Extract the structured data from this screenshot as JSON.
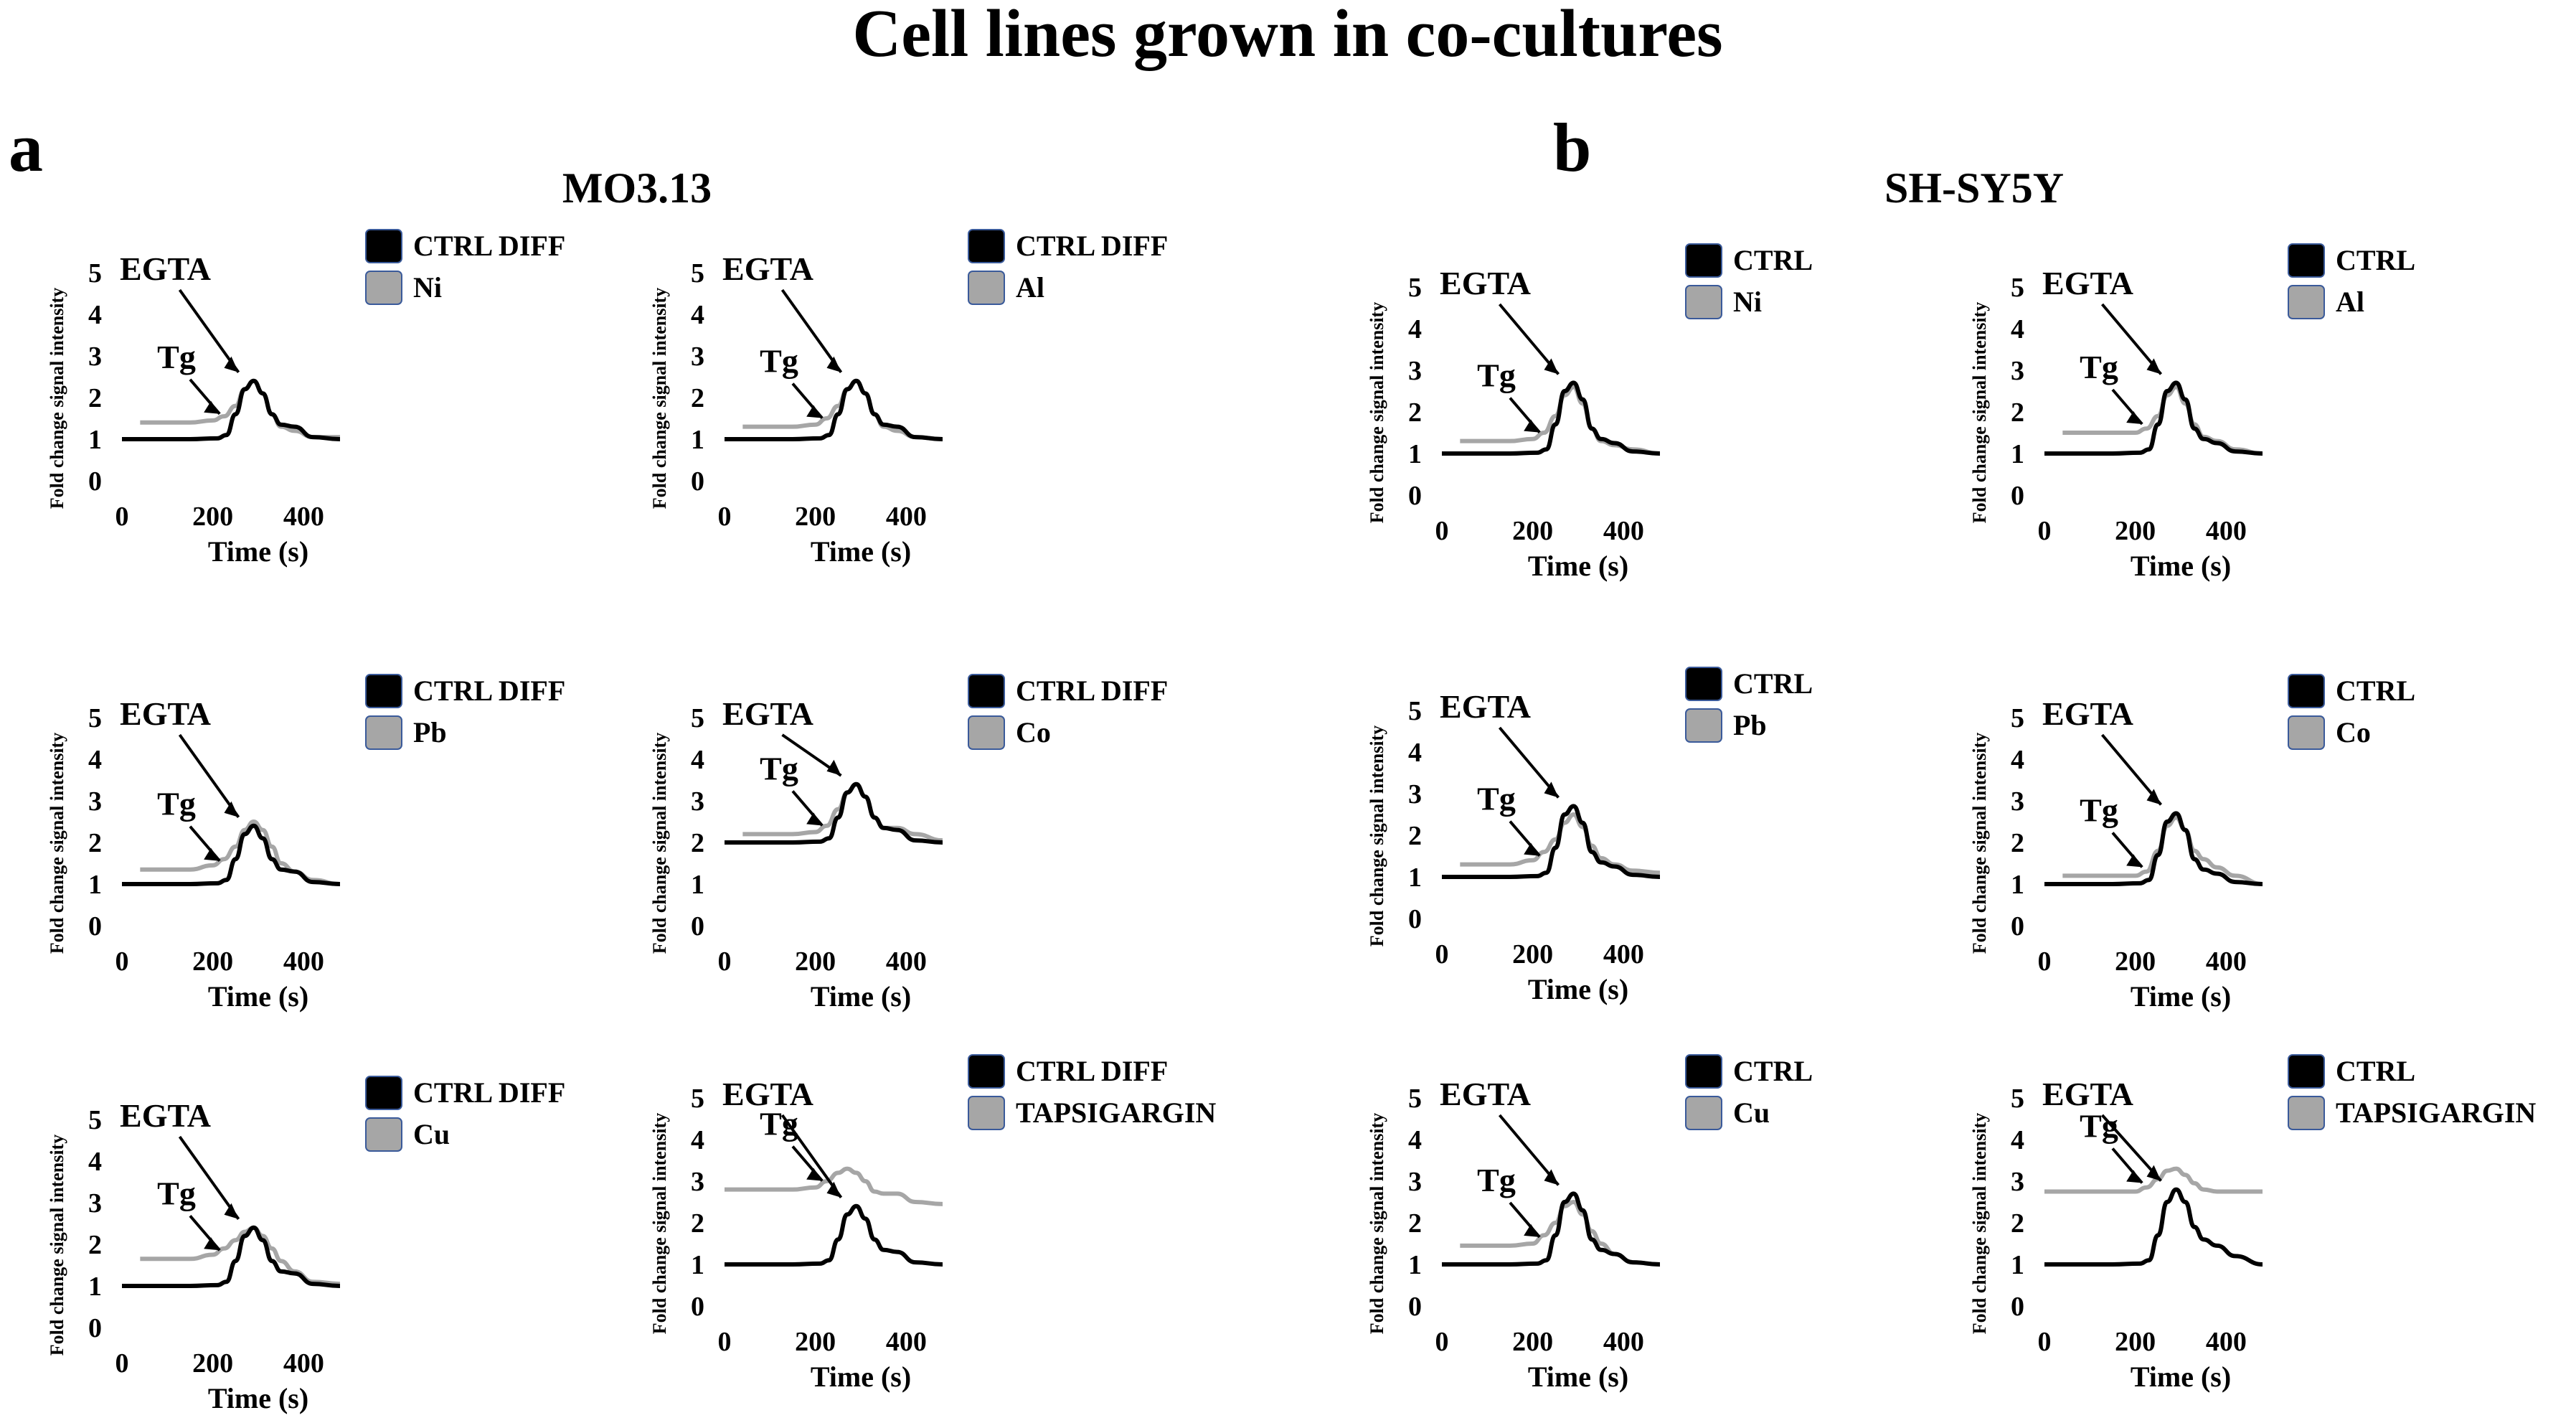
{
  "figure": {
    "title": "Cell lines grown in co-cultures",
    "panel_a": {
      "letter": "a",
      "label": "MO3.13"
    },
    "panel_b": {
      "letter": "b",
      "label": "SH-SY5Y"
    }
  },
  "colors": {
    "control": "#000000",
    "treatment": "#a6a6a6",
    "legend_border": "#3a5a9a"
  },
  "chart_data": [
    {
      "type": "line",
      "id": "a1",
      "ylabel": "Fold change signal intensity",
      "xlabel": "Time (s)",
      "yticks": [
        "0",
        "1",
        "2",
        "3",
        "4",
        "5"
      ],
      "xticks": [
        "0",
        "200",
        "400"
      ],
      "ylim": [
        0,
        5
      ],
      "xlim": [
        0,
        600
      ],
      "annotations": [
        "EGTA",
        "Tg"
      ],
      "series": [
        {
          "name": "CTRL DIFF",
          "x": [
            0,
            150,
            210,
            230,
            250,
            270,
            290,
            310,
            330,
            350,
            380,
            420,
            480
          ],
          "y": [
            1,
            1,
            1.02,
            1.1,
            1.6,
            2.2,
            2.4,
            2.1,
            1.6,
            1.35,
            1.3,
            1.05,
            1
          ]
        },
        {
          "name": "Ni",
          "x": [
            40,
            150,
            200,
            225,
            250,
            270,
            290,
            310,
            330,
            350,
            380,
            420,
            480
          ],
          "y": [
            1.4,
            1.4,
            1.45,
            1.55,
            1.8,
            2.2,
            2.4,
            2.1,
            1.6,
            1.3,
            1.2,
            1.05,
            1.05
          ]
        }
      ]
    },
    {
      "type": "line",
      "id": "a2",
      "ylabel": "Fold change signal intensity",
      "xlabel": "Time (s)",
      "yticks": [
        "0",
        "1",
        "2",
        "3",
        "4",
        "5"
      ],
      "xticks": [
        "0",
        "200",
        "400"
      ],
      "ylim": [
        0,
        5
      ],
      "xlim": [
        0,
        600
      ],
      "annotations": [
        "EGTA",
        "Tg"
      ],
      "series": [
        {
          "name": "CTRL DIFF",
          "x": [
            0,
            150,
            210,
            230,
            250,
            270,
            290,
            310,
            330,
            350,
            380,
            420,
            480
          ],
          "y": [
            1,
            1,
            1.02,
            1.1,
            1.6,
            2.2,
            2.4,
            2.1,
            1.6,
            1.35,
            1.3,
            1.05,
            1
          ]
        },
        {
          "name": "Al",
          "x": [
            40,
            150,
            200,
            225,
            250,
            270,
            290,
            310,
            330,
            350,
            380,
            420,
            480
          ],
          "y": [
            1.3,
            1.3,
            1.35,
            1.5,
            1.8,
            2.2,
            2.4,
            2.1,
            1.6,
            1.3,
            1.2,
            1.05,
            1.0
          ]
        }
      ]
    },
    {
      "type": "line",
      "id": "a3",
      "ylabel": "Fold change signal intensity",
      "xlabel": "Time (s)",
      "yticks": [
        "0",
        "1",
        "2",
        "3",
        "4",
        "5"
      ],
      "xticks": [
        "0",
        "200",
        "400"
      ],
      "ylim": [
        0,
        5
      ],
      "xlim": [
        0,
        600
      ],
      "annotations": [
        "EGTA",
        "Tg"
      ],
      "series": [
        {
          "name": "CTRL DIFF",
          "x": [
            0,
            150,
            210,
            230,
            250,
            270,
            290,
            310,
            330,
            350,
            380,
            420,
            480
          ],
          "y": [
            1,
            1,
            1.02,
            1.1,
            1.6,
            2.2,
            2.4,
            2.1,
            1.6,
            1.35,
            1.3,
            1.05,
            1
          ]
        },
        {
          "name": "Pb",
          "x": [
            40,
            150,
            200,
            225,
            250,
            270,
            290,
            310,
            330,
            350,
            380,
            420,
            480
          ],
          "y": [
            1.35,
            1.35,
            1.45,
            1.6,
            1.9,
            2.3,
            2.5,
            2.3,
            1.9,
            1.5,
            1.3,
            1.1,
            1.0
          ]
        }
      ]
    },
    {
      "type": "line",
      "id": "a4",
      "ylabel": "Fold change signal intensity",
      "xlabel": "Time (s)",
      "yticks": [
        "0",
        "1",
        "2",
        "3",
        "4",
        "5"
      ],
      "xticks": [
        "0",
        "200",
        "400"
      ],
      "ylim": [
        0,
        5
      ],
      "xlim": [
        0,
        600
      ],
      "annotations": [
        "EGTA",
        "Tg"
      ],
      "series": [
        {
          "name": "CTRL DIFF",
          "x": [
            0,
            150,
            210,
            230,
            250,
            270,
            290,
            310,
            330,
            350,
            380,
            420,
            480
          ],
          "y": [
            2,
            2,
            2.02,
            2.1,
            2.6,
            3.2,
            3.4,
            3.1,
            2.6,
            2.35,
            2.3,
            2.05,
            2
          ]
        },
        {
          "name": "Co",
          "x": [
            40,
            150,
            200,
            225,
            250,
            270,
            290,
            310,
            330,
            350,
            380,
            420,
            480
          ],
          "y": [
            2.2,
            2.2,
            2.25,
            2.4,
            2.8,
            3.2,
            3.4,
            3.1,
            2.6,
            2.35,
            2.35,
            2.2,
            2.05
          ]
        }
      ]
    },
    {
      "type": "line",
      "id": "a5",
      "ylabel": "Fold change signal intensity",
      "xlabel": "Time (s)",
      "yticks": [
        "0",
        "1",
        "2",
        "3",
        "4",
        "5"
      ],
      "xticks": [
        "0",
        "200",
        "400"
      ],
      "ylim": [
        0,
        5
      ],
      "xlim": [
        0,
        600
      ],
      "annotations": [
        "EGTA",
        "Tg"
      ],
      "series": [
        {
          "name": "CTRL DIFF",
          "x": [
            0,
            150,
            210,
            230,
            250,
            270,
            290,
            310,
            330,
            350,
            380,
            420,
            480
          ],
          "y": [
            1,
            1,
            1.02,
            1.1,
            1.6,
            2.2,
            2.4,
            2.1,
            1.6,
            1.35,
            1.3,
            1.05,
            1
          ]
        },
        {
          "name": "Cu",
          "x": [
            40,
            150,
            200,
            225,
            250,
            270,
            290,
            310,
            330,
            350,
            380,
            420,
            480
          ],
          "y": [
            1.65,
            1.65,
            1.75,
            1.9,
            2.1,
            2.3,
            2.4,
            2.2,
            1.9,
            1.6,
            1.35,
            1.1,
            1.05
          ]
        }
      ]
    },
    {
      "type": "line",
      "id": "a6",
      "ylabel": "Fold change signal intensity",
      "xlabel": "Time (s)",
      "yticks": [
        "0",
        "1",
        "2",
        "3",
        "4",
        "5"
      ],
      "xticks": [
        "0",
        "200",
        "400"
      ],
      "ylim": [
        0,
        5
      ],
      "xlim": [
        0,
        600
      ],
      "annotations": [
        "EGTA",
        "Tg"
      ],
      "series": [
        {
          "name": "CTRL DIFF",
          "x": [
            0,
            150,
            210,
            230,
            250,
            270,
            290,
            310,
            330,
            350,
            380,
            420,
            480
          ],
          "y": [
            1,
            1,
            1.02,
            1.1,
            1.6,
            2.2,
            2.4,
            2.1,
            1.6,
            1.35,
            1.3,
            1.05,
            1
          ]
        },
        {
          "name": "TAPSIGARGIN",
          "x": [
            0,
            150,
            200,
            225,
            250,
            270,
            290,
            310,
            330,
            350,
            380,
            420,
            480
          ],
          "y": [
            2.8,
            2.8,
            2.85,
            3.0,
            3.2,
            3.3,
            3.2,
            3.0,
            2.75,
            2.7,
            2.7,
            2.5,
            2.45
          ]
        }
      ]
    },
    {
      "type": "line",
      "id": "b1",
      "ylabel": "Fold change signal intensity",
      "xlabel": "Time (s)",
      "yticks": [
        "0",
        "1",
        "2",
        "3",
        "4",
        "5"
      ],
      "xticks": [
        "0",
        "200",
        "400"
      ],
      "ylim": [
        0,
        5
      ],
      "xlim": [
        0,
        600
      ],
      "annotations": [
        "EGTA",
        "Tg"
      ],
      "series": [
        {
          "name": "CTRL",
          "x": [
            0,
            150,
            210,
            230,
            250,
            270,
            290,
            310,
            330,
            350,
            380,
            420,
            480
          ],
          "y": [
            1,
            1,
            1.02,
            1.1,
            1.7,
            2.5,
            2.7,
            2.3,
            1.6,
            1.35,
            1.25,
            1.05,
            1
          ]
        },
        {
          "name": "Ni",
          "x": [
            40,
            150,
            200,
            225,
            250,
            270,
            290,
            310,
            330,
            350,
            380,
            420,
            480
          ],
          "y": [
            1.3,
            1.3,
            1.35,
            1.5,
            1.9,
            2.4,
            2.6,
            2.2,
            1.6,
            1.3,
            1.2,
            1.1,
            1.0
          ]
        }
      ]
    },
    {
      "type": "line",
      "id": "b2",
      "ylabel": "Fold change signal intensity",
      "xlabel": "Time (s)",
      "yticks": [
        "0",
        "1",
        "2",
        "3",
        "4",
        "5"
      ],
      "xticks": [
        "0",
        "200",
        "400"
      ],
      "ylim": [
        0,
        5
      ],
      "xlim": [
        0,
        600
      ],
      "annotations": [
        "EGTA",
        "Tg"
      ],
      "series": [
        {
          "name": "CTRL",
          "x": [
            0,
            150,
            210,
            230,
            250,
            270,
            290,
            310,
            330,
            350,
            380,
            420,
            480
          ],
          "y": [
            1,
            1,
            1.02,
            1.1,
            1.7,
            2.5,
            2.7,
            2.3,
            1.6,
            1.35,
            1.25,
            1.05,
            1
          ]
        },
        {
          "name": "Al",
          "x": [
            40,
            150,
            200,
            225,
            250,
            270,
            290,
            310,
            330,
            350,
            380,
            420,
            480
          ],
          "y": [
            1.5,
            1.5,
            1.5,
            1.6,
            1.9,
            2.4,
            2.6,
            2.2,
            1.7,
            1.4,
            1.3,
            1.1,
            1.0
          ]
        }
      ]
    },
    {
      "type": "line",
      "id": "b3",
      "ylabel": "Fold change signal intensity",
      "xlabel": "Time (s)",
      "yticks": [
        "0",
        "1",
        "2",
        "3",
        "4",
        "5"
      ],
      "xticks": [
        "0",
        "200",
        "400"
      ],
      "ylim": [
        0,
        5
      ],
      "xlim": [
        0,
        600
      ],
      "annotations": [
        "EGTA",
        "Tg"
      ],
      "series": [
        {
          "name": "CTRL",
          "x": [
            0,
            150,
            210,
            230,
            250,
            270,
            290,
            310,
            330,
            350,
            380,
            420,
            480
          ],
          "y": [
            1,
            1,
            1.02,
            1.1,
            1.7,
            2.5,
            2.7,
            2.3,
            1.6,
            1.35,
            1.25,
            1.05,
            1
          ]
        },
        {
          "name": "Pb",
          "x": [
            40,
            150,
            200,
            225,
            250,
            270,
            290,
            310,
            330,
            350,
            380,
            420,
            480
          ],
          "y": [
            1.3,
            1.3,
            1.4,
            1.6,
            1.9,
            2.3,
            2.5,
            2.2,
            1.75,
            1.45,
            1.3,
            1.15,
            1.1
          ]
        }
      ]
    },
    {
      "type": "line",
      "id": "b4",
      "ylabel": "Fold change signal intensity",
      "xlabel": "Time (s)",
      "yticks": [
        "0",
        "1",
        "2",
        "3",
        "4",
        "5"
      ],
      "xticks": [
        "0",
        "200",
        "400"
      ],
      "ylim": [
        0,
        5
      ],
      "xlim": [
        0,
        600
      ],
      "annotations": [
        "EGTA",
        "Tg"
      ],
      "series": [
        {
          "name": "CTRL",
          "x": [
            0,
            150,
            210,
            230,
            250,
            270,
            290,
            310,
            330,
            350,
            380,
            420,
            480
          ],
          "y": [
            1,
            1,
            1.02,
            1.1,
            1.7,
            2.5,
            2.7,
            2.3,
            1.6,
            1.35,
            1.25,
            1.05,
            1
          ]
        },
        {
          "name": "Co",
          "x": [
            40,
            150,
            200,
            225,
            250,
            270,
            290,
            310,
            330,
            350,
            380,
            420,
            480
          ],
          "y": [
            1.2,
            1.2,
            1.2,
            1.3,
            1.8,
            2.4,
            2.6,
            2.3,
            1.8,
            1.6,
            1.4,
            1.2,
            1.0
          ]
        }
      ]
    },
    {
      "type": "line",
      "id": "b5",
      "ylabel": "Fold change signal intensity",
      "xlabel": "Time (s)",
      "yticks": [
        "0",
        "1",
        "2",
        "3",
        "4",
        "5"
      ],
      "xticks": [
        "0",
        "200",
        "400"
      ],
      "ylim": [
        0,
        5
      ],
      "xlim": [
        0,
        600
      ],
      "annotations": [
        "EGTA",
        "Tg"
      ],
      "series": [
        {
          "name": "CTRL",
          "x": [
            0,
            150,
            210,
            230,
            250,
            270,
            290,
            310,
            330,
            350,
            380,
            420,
            480
          ],
          "y": [
            1,
            1,
            1.02,
            1.1,
            1.7,
            2.5,
            2.7,
            2.3,
            1.6,
            1.35,
            1.25,
            1.05,
            1
          ]
        },
        {
          "name": "Cu",
          "x": [
            40,
            150,
            200,
            225,
            250,
            270,
            290,
            310,
            330,
            350,
            380,
            420,
            480
          ],
          "y": [
            1.45,
            1.45,
            1.5,
            1.7,
            2.0,
            2.4,
            2.5,
            2.2,
            1.8,
            1.5,
            1.25,
            1.05,
            1.0
          ]
        }
      ]
    },
    {
      "type": "line",
      "id": "b6",
      "ylabel": "Fold change signal intensity",
      "xlabel": "Time (s)",
      "yticks": [
        "0",
        "1",
        "2",
        "3",
        "4",
        "5"
      ],
      "xticks": [
        "0",
        "200",
        "400"
      ],
      "ylim": [
        0,
        5
      ],
      "xlim": [
        0,
        600
      ],
      "annotations": [
        "EGTA",
        "Tg"
      ],
      "series": [
        {
          "name": "CTRL",
          "x": [
            0,
            150,
            210,
            230,
            250,
            270,
            290,
            310,
            330,
            350,
            380,
            420,
            480
          ],
          "y": [
            1,
            1,
            1.02,
            1.1,
            1.7,
            2.5,
            2.8,
            2.5,
            1.9,
            1.6,
            1.45,
            1.2,
            1.0
          ]
        },
        {
          "name": "TAPSIGARGIN",
          "x": [
            0,
            150,
            200,
            225,
            250,
            270,
            290,
            310,
            330,
            350,
            380,
            420,
            480
          ],
          "y": [
            2.75,
            2.75,
            2.75,
            2.85,
            3.05,
            3.25,
            3.3,
            3.15,
            2.95,
            2.8,
            2.75,
            2.75,
            2.75
          ]
        }
      ]
    }
  ]
}
